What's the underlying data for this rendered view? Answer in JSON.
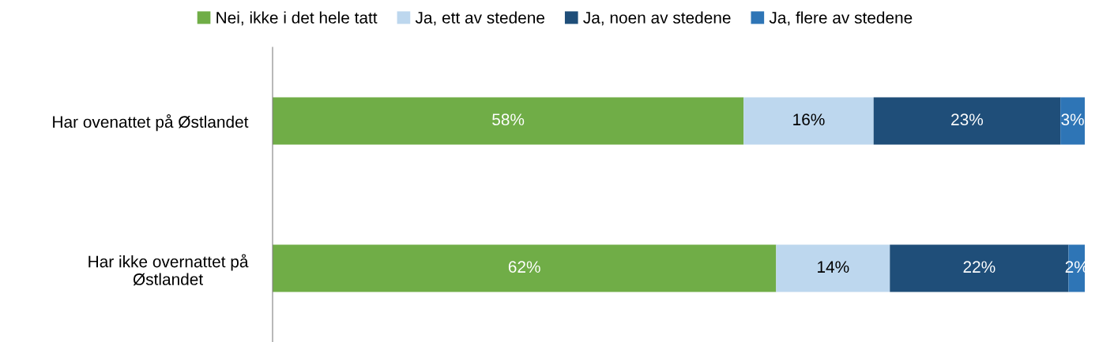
{
  "chart_data": {
    "type": "bar",
    "orientation": "horizontal",
    "stacked": true,
    "legend": "top",
    "grid": false,
    "tick_labels": "y",
    "categories": [
      "Har ovenattet på Østlandet",
      "Har ikke overnattet på Østlandet"
    ],
    "series": [
      {
        "name": "Nei, ikke i det hele tatt",
        "color": "#70ad47",
        "values": [
          58,
          62
        ],
        "value_labels": [
          "58%",
          "62%"
        ]
      },
      {
        "name": "Ja, ett av stedene",
        "color": "#bdd7ee",
        "values": [
          16,
          14
        ],
        "value_labels": [
          "16%",
          "14%"
        ]
      },
      {
        "name": "Ja, noen av stedene",
        "color": "#1f4e79",
        "values": [
          23,
          22
        ],
        "value_labels": [
          "23%",
          "22%"
        ]
      },
      {
        "name": "Ja, flere av stedene",
        "color": "#2e75b6",
        "values": [
          3,
          2
        ],
        "value_labels": [
          "3%",
          "2%"
        ]
      }
    ]
  }
}
